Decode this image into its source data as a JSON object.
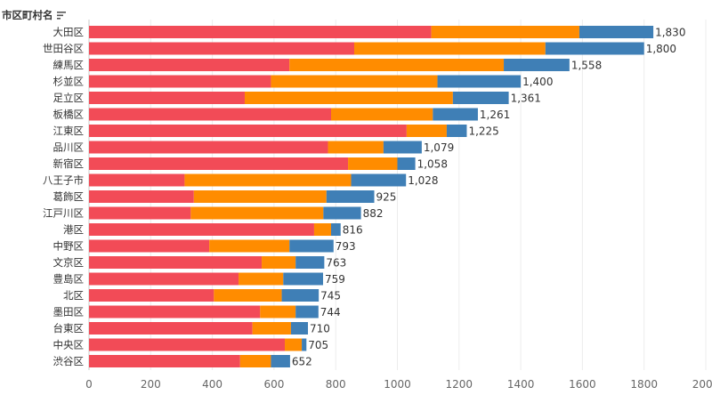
{
  "header": {
    "label": "市区町村名",
    "sort_icon": "sort-descending-icon"
  },
  "chart_data": {
    "type": "bar",
    "orientation": "horizontal",
    "stacked": true,
    "categories": [
      "大田区",
      "世田谷区",
      "練馬区",
      "杉並区",
      "足立区",
      "板橋区",
      "江東区",
      "品川区",
      "新宿区",
      "八王子市",
      "葛飾区",
      "江戸川区",
      "港区",
      "中野区",
      "文京区",
      "豊島区",
      "北区",
      "墨田区",
      "台東区",
      "中央区",
      "渋谷区"
    ],
    "series": [
      {
        "color": "#f24b57",
        "values": [
          1110,
          860,
          650,
          590,
          505,
          785,
          1030,
          775,
          840,
          310,
          340,
          330,
          730,
          390,
          560,
          485,
          405,
          555,
          530,
          635,
          490
        ]
      },
      {
        "color": "#ff8c00",
        "values": [
          480,
          620,
          695,
          540,
          675,
          330,
          130,
          180,
          160,
          540,
          430,
          430,
          55,
          260,
          110,
          145,
          220,
          115,
          125,
          55,
          100
        ]
      },
      {
        "color": "#3f7fb6",
        "values": [
          240,
          320,
          213,
          270,
          181,
          146,
          65,
          124,
          58,
          178,
          155,
          122,
          31,
          143,
          93,
          129,
          120,
          74,
          55,
          15,
          62
        ]
      }
    ],
    "totals": [
      "1,830",
      "1,800",
      "1,558",
      "1,400",
      "1,361",
      "1,261",
      "1,225",
      "1,079",
      "1,058",
      "1,028",
      "925",
      "882",
      "816",
      "793",
      "763",
      "759",
      "745",
      "744",
      "710",
      "705",
      "652"
    ],
    "x_ticks": [
      "0",
      "200",
      "400",
      "600",
      "800",
      "1000",
      "1200",
      "1400",
      "1600",
      "1800",
      "2000"
    ],
    "xlim": [
      0,
      2000
    ],
    "grid": true,
    "legend": "none"
  }
}
